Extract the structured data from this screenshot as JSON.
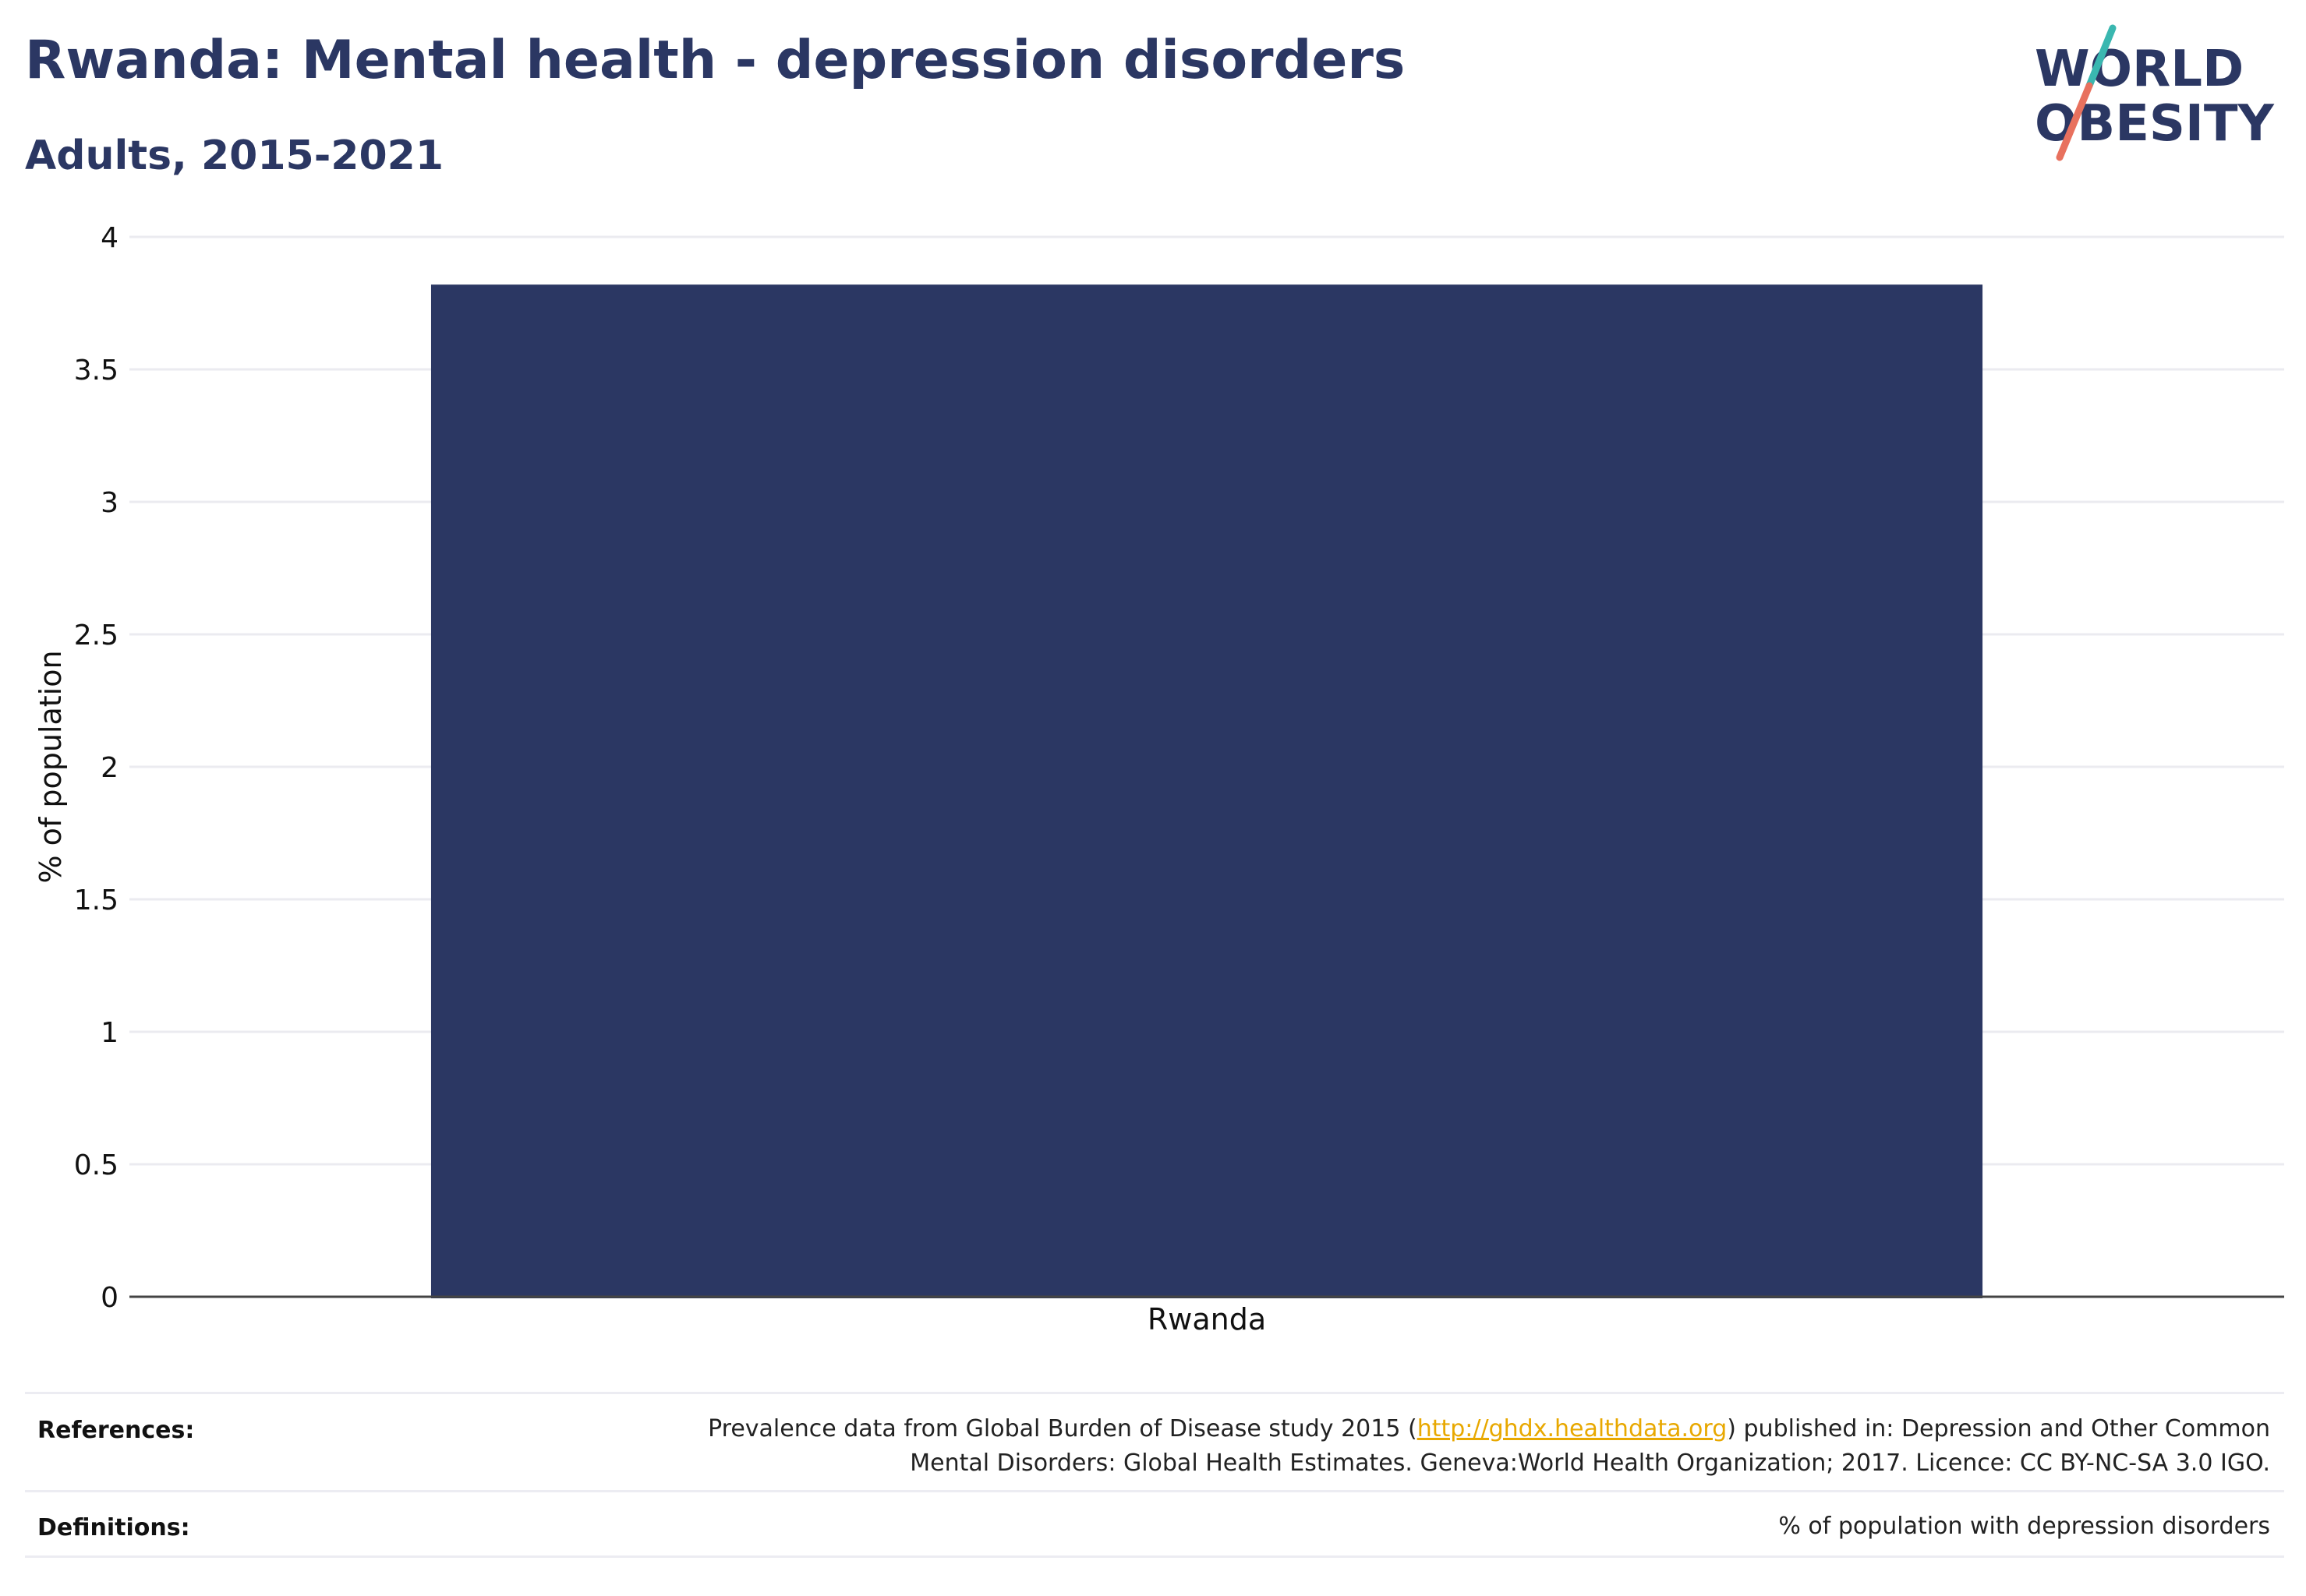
{
  "header": {
    "title": "Rwanda: Mental health - depression disorders",
    "subtitle": "Adults, 2015-2021"
  },
  "logo": {
    "line1": "WORLD",
    "line2": "OBESITY",
    "text_color": "#2b3763",
    "slash_top_color": "#3ab7b0",
    "slash_bottom_color": "#e8715e"
  },
  "chart_data": {
    "type": "bar",
    "categories": [
      "Rwanda"
    ],
    "values": [
      3.82
    ],
    "ylabel": "% of population",
    "xlabel": "",
    "ylim": [
      0,
      4
    ],
    "yticks": [
      "0",
      "0.5",
      "1",
      "1.5",
      "2",
      "2.5",
      "3",
      "3.5",
      "4"
    ],
    "grid": true,
    "bar_color": "#2b3763"
  },
  "footer": {
    "references_label": "References:",
    "references_line1_before": "Prevalence data from Global Burden of Disease study 2015 (",
    "references_link": "http://ghdx.healthdata.org",
    "references_line1_after": ") published in: Depression and Other Common",
    "references_line2": "Mental Disorders: Global Health Estimates. Geneva:World Health Organization; 2017. Licence: CC BY-NC-SA 3.0 IGO.",
    "definitions_label": "Definitions:",
    "definitions_text": "% of population with depression disorders"
  }
}
